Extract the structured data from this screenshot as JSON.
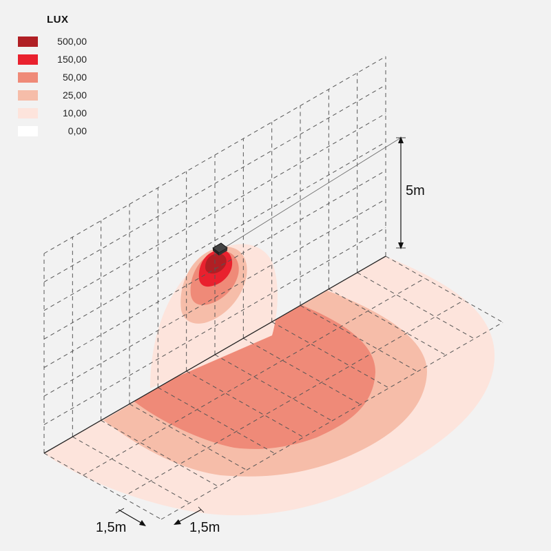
{
  "legend": {
    "title": "LUX",
    "items": [
      {
        "label": "500,00",
        "color": "#b01f24"
      },
      {
        "label": "150,00",
        "color": "#e9212e"
      },
      {
        "label": "50,00",
        "color": "#ef8a78"
      },
      {
        "label": "25,00",
        "color": "#f6bda9"
      },
      {
        "label": "10,00",
        "color": "#fde4dc"
      },
      {
        "label": "0,00",
        "color": "#ffffff"
      }
    ]
  },
  "dimensions": {
    "height_label": "5m",
    "grid_label_a": "1,5m",
    "grid_label_b": "1,5m"
  }
}
